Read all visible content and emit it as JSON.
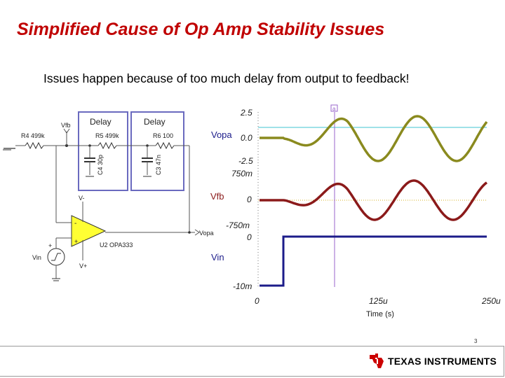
{
  "slide": {
    "title": "Simplified Cause of Op Amp Stability Issues",
    "subtitle": "Issues happen because of too much delay from output to feedback!",
    "page_number": "3"
  },
  "schematic": {
    "r4_label": "R4 499k",
    "vfb_label": "Vfb",
    "delay1_label": "Delay",
    "delay2_label": "Delay",
    "r5_label": "R5 499k",
    "r6_label": "R6 100",
    "c4_label": "C4 30p",
    "c3_label": "C3 47n",
    "vminus_label": "V-",
    "vplus_label": "V+",
    "opamp_label": "U2 OPA333",
    "vopa_label": "Vopa",
    "vin_label": "Vin",
    "minus_sign": "-",
    "plus_sign": "+"
  },
  "chart_data": {
    "type": "line",
    "xlabel": "Time (s)",
    "x_ticks": [
      "0",
      "125u",
      "250u"
    ],
    "xlim": [
      0,
      250
    ],
    "cursor_label": "a",
    "series": [
      {
        "name": "Vopa",
        "ticks": [
          "2.5",
          "0.0",
          "-2.5"
        ],
        "ylim": [
          -2.5,
          2.5
        ],
        "color": "#8a8a1e"
      },
      {
        "name": "Vfb",
        "ticks": [
          "750m",
          "0",
          "-750m"
        ],
        "ylim": [
          -0.75,
          0.75
        ],
        "color": "#8b1a1a"
      },
      {
        "name": "Vin",
        "ticks": [
          "0",
          "-10m"
        ],
        "ylim": [
          -0.01,
          0
        ],
        "color": "#1c1c8a"
      }
    ]
  },
  "footer": {
    "brand_texas": "TEXAS",
    "brand_instruments": "INSTRUMENTS"
  }
}
